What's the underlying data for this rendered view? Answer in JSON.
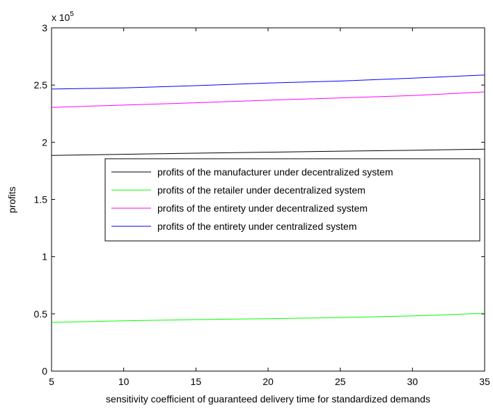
{
  "chart_data": {
    "type": "line",
    "title": "",
    "xlabel": "sensitivity coefficient of  guaranteed delivery time for standardized  demands",
    "ylabel": "profits",
    "xlim": [
      5,
      35
    ],
    "ylim": [
      0,
      300000
    ],
    "xticks": [
      5,
      10,
      15,
      20,
      25,
      30,
      35
    ],
    "yticks": [
      0,
      50000,
      100000,
      150000,
      200000,
      250000,
      300000
    ],
    "ytick_labels": [
      "0",
      "0.5",
      "1",
      "1.5",
      "2",
      "2.5",
      "3"
    ],
    "y_multiplier": "x 10",
    "y_multiplier_exp": "5",
    "grid": false,
    "legend_position": "center-right",
    "x": [
      5,
      10,
      15,
      20,
      25,
      30,
      35
    ],
    "series": [
      {
        "name": "profits of the manufacturer under decentralized system",
        "color": "#000000",
        "values": [
          188500,
          189500,
          190500,
          191300,
          192200,
          193000,
          194000
        ]
      },
      {
        "name": "profits of the retailer under decentralized system",
        "color": "#00ff00",
        "values": [
          42500,
          44000,
          45000,
          45800,
          46800,
          48200,
          50500
        ]
      },
      {
        "name": "profits of the entirety under decentralized system",
        "color": "#ff00ff",
        "values": [
          230500,
          232500,
          234500,
          236800,
          238800,
          240800,
          244000
        ]
      },
      {
        "name": "profits of the entirety under centralized system",
        "color": "#0000ff",
        "values": [
          246500,
          247500,
          249500,
          251800,
          253500,
          256000,
          258800
        ]
      }
    ]
  }
}
